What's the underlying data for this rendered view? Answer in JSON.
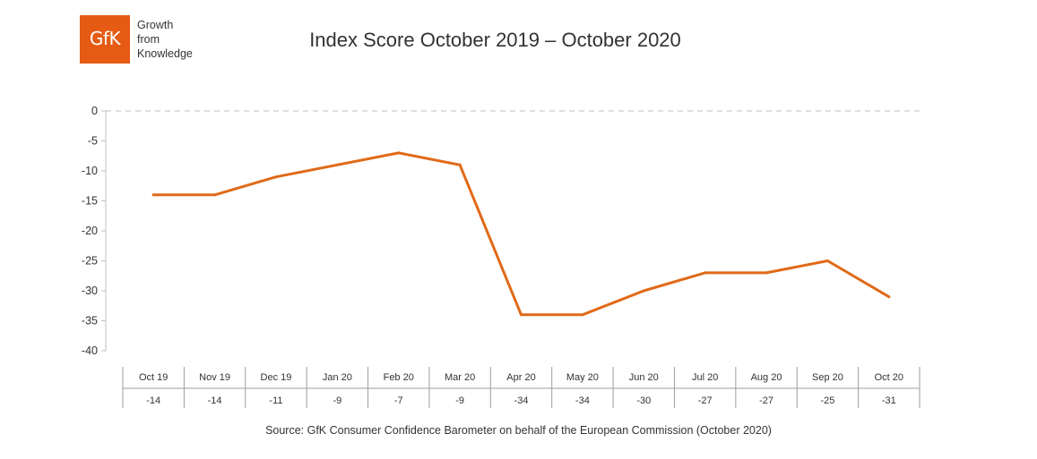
{
  "logo": {
    "mark": "GfK",
    "tagline": [
      "Growth",
      "from",
      "Knowledge"
    ]
  },
  "colors": {
    "brand": "#E55B13",
    "line": "#E06A18"
  },
  "source": "Source: GfK Consumer Confidence Barometer on behalf of the European Commission (October 2020)",
  "chart_data": {
    "type": "line",
    "title": "Index Score October 2019 – October 2020",
    "xlabel": "",
    "ylabel": "",
    "ylim": [
      -40,
      0
    ],
    "yticks": [
      0,
      -5,
      -10,
      -15,
      -20,
      -25,
      -30,
      -35,
      -40
    ],
    "categories": [
      "Oct 19",
      "Nov 19",
      "Dec 19",
      "Jan 20",
      "Feb 20",
      "Mar 20",
      "Apr 20",
      "May 20",
      "Jun 20",
      "Jul 20",
      "Aug 20",
      "Sep 20",
      "Oct 20"
    ],
    "series": [
      {
        "values": [
          -14,
          -14,
          -11,
          -9,
          -7,
          -9,
          -34,
          -34,
          -30,
          -27,
          -27,
          -25,
          -31
        ]
      }
    ],
    "table_values": [
      "-14",
      "-14",
      "-11",
      "-9",
      "-7",
      "-9",
      "-34",
      "-34",
      "-30",
      "-27",
      "-27",
      "-25",
      "-31"
    ],
    "grid": false,
    "zero_line": "dashed"
  }
}
